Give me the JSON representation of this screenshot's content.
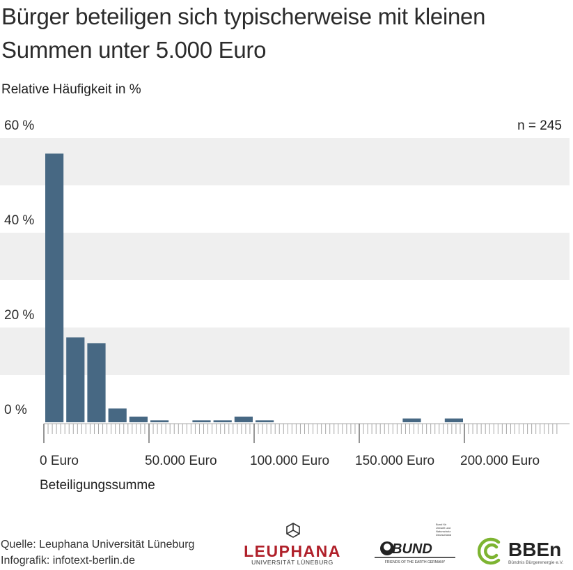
{
  "title_line1": "Bürger beteiligen sich typischerweise mit kleinen",
  "title_line2": "Summen unter 5.000 Euro",
  "n_label": "n = 245",
  "source_line1": "Quelle: Leuphana Universität Lüneburg",
  "source_line2": "Infografik: infotext-berlin.de",
  "logos": {
    "leuphana_name": "LEUPHANA",
    "leuphana_sub": "UNIVERSITÄT LÜNEBURG",
    "bund_name": "BUND",
    "bund_sub": "FRIENDS OF THE EARTH GERMANY",
    "bund_side": "Bund für Umwelt und Naturschutz Deutschland",
    "bben_name": "BBEn",
    "bben_sub": "Bündnis Bürgerenergie e.V."
  },
  "colors": {
    "bar": "#476883",
    "band": "#efefef",
    "axis": "#a8a8a8",
    "leuphana_red": "#b0202a",
    "bben_green": "#7db431"
  },
  "chart_data": {
    "type": "bar",
    "title": "Bürger beteiligen sich typischerweise mit kleinen Summen unter 5.000 Euro",
    "ylabel": "Relative Häufigkeit in %",
    "xlabel": "Beteiligungssumme",
    "ylim": [
      0,
      60
    ],
    "xlim": [
      0,
      240000
    ],
    "bin_width": 10000,
    "yticks": [
      0,
      20,
      40,
      60
    ],
    "ytick_labels": [
      "0 %",
      "20 %",
      "40 %",
      "60 %"
    ],
    "xticks": [
      0,
      50000,
      100000,
      150000,
      200000
    ],
    "xtick_labels": [
      "0 Euro",
      "50.000 Euro",
      "100.000 Euro",
      "150.000 Euro",
      "200.000 Euro"
    ],
    "bin_starts": [
      0,
      10000,
      20000,
      30000,
      40000,
      50000,
      70000,
      80000,
      90000,
      100000,
      170000,
      190000
    ],
    "values": [
      56.7,
      17.9,
      16.7,
      2.9,
      1.2,
      0.4,
      0.4,
      0.4,
      1.2,
      0.4,
      0.8,
      0.8
    ],
    "grid": "alternating horizontal bands",
    "annotation": "n = 245"
  }
}
